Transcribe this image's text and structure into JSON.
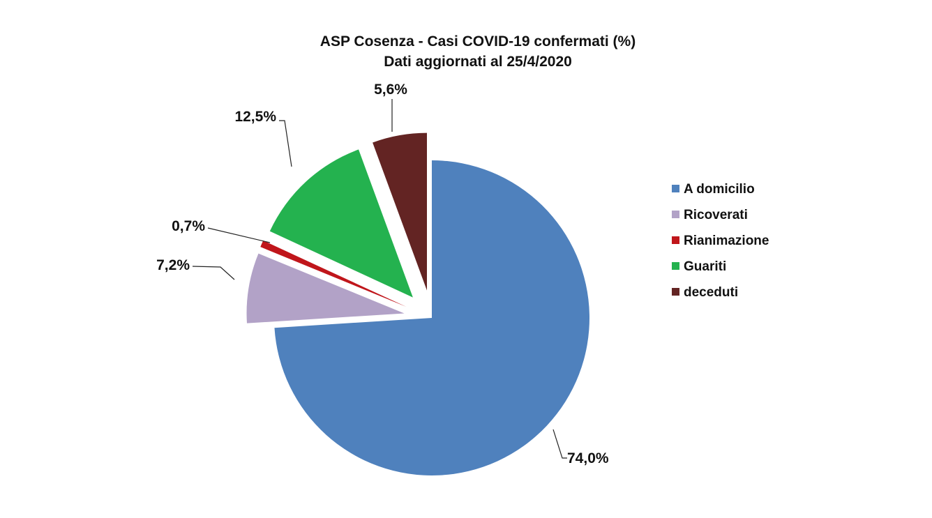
{
  "chart_data": {
    "type": "pie",
    "title": "ASP Cosenza - Casi COVID-19 confermati (%)",
    "subtitle": "Dati aggiornati al 25/4/2020",
    "legend_position": "right",
    "slices": [
      {
        "name": "A domicilio",
        "value": 74.0,
        "label": "74,0%",
        "color": "#4f81bd"
      },
      {
        "name": "Ricoverati",
        "value": 7.2,
        "label": "7,2%",
        "color": "#b2a2c7"
      },
      {
        "name": "Rianimazione",
        "value": 0.7,
        "label": "0,7%",
        "color": "#c0161b"
      },
      {
        "name": "Guariti",
        "value": 12.5,
        "label": "12,5%",
        "color": "#24b24f"
      },
      {
        "name": "deceduti",
        "value": 5.6,
        "label": "5,6%",
        "color": "#632423"
      }
    ]
  }
}
